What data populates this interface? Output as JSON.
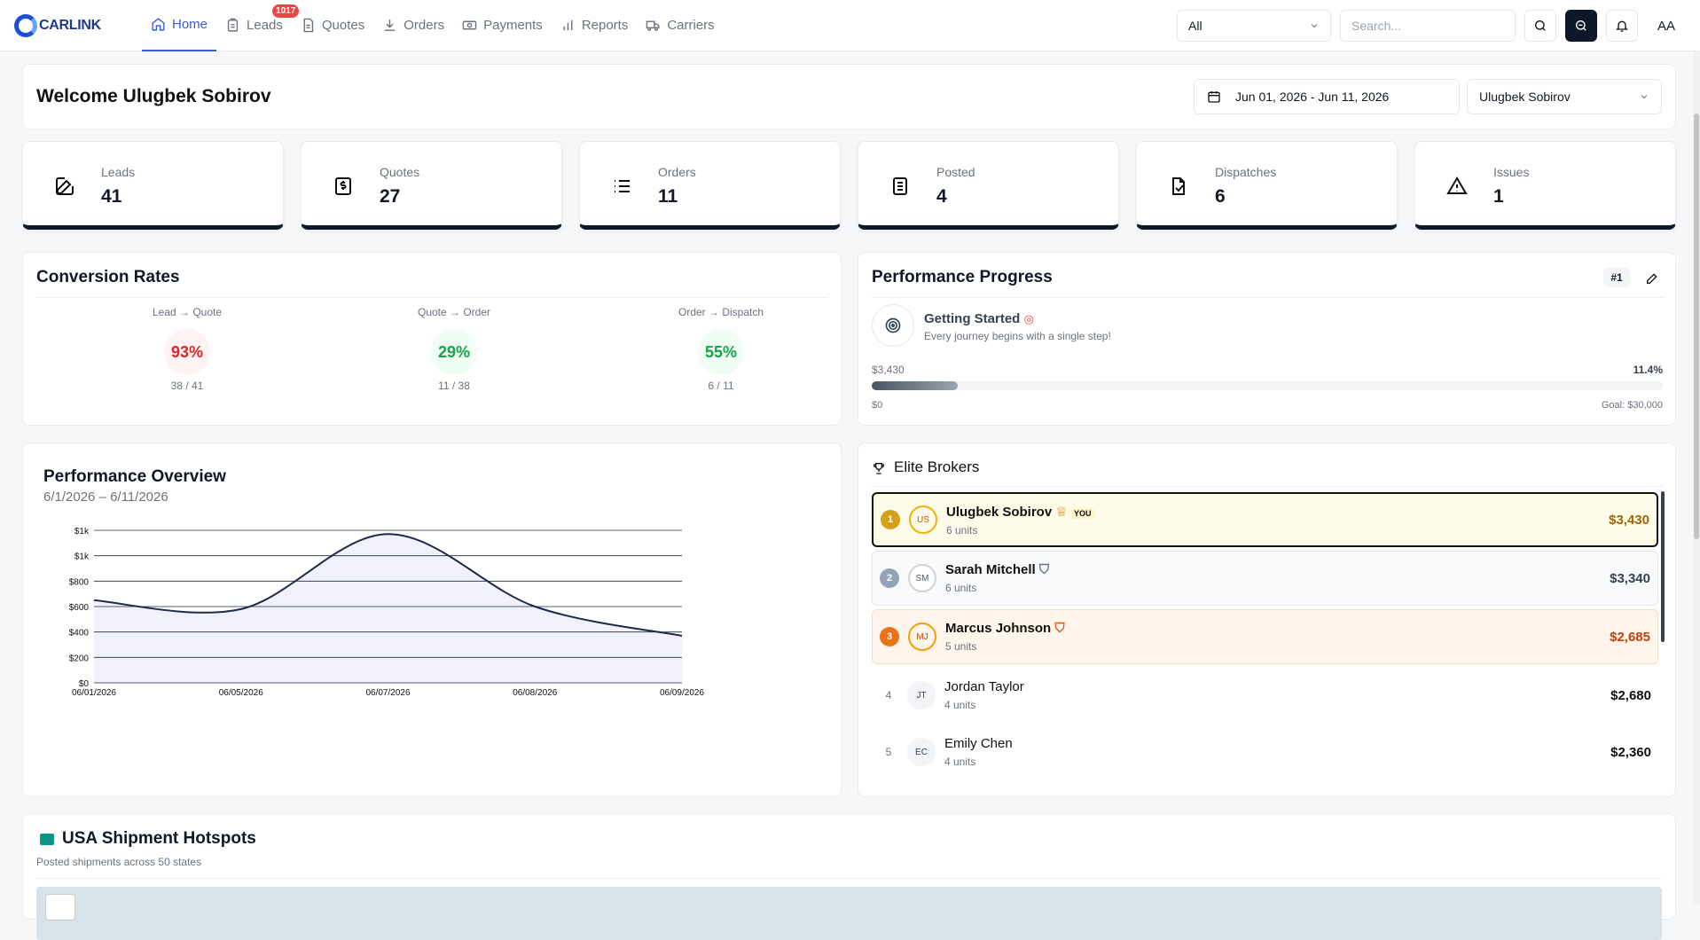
{
  "brand": {
    "name": "CARLINK"
  },
  "nav": {
    "items": [
      {
        "label": "Home",
        "icon": "home-icon",
        "active": true
      },
      {
        "label": "Leads",
        "icon": "clipboard-icon",
        "badge": "1017"
      },
      {
        "label": "Quotes",
        "icon": "document-icon"
      },
      {
        "label": "Orders",
        "icon": "download-icon"
      },
      {
        "label": "Payments",
        "icon": "banknote-icon"
      },
      {
        "label": "Reports",
        "icon": "bar-chart-icon"
      },
      {
        "label": "Carriers",
        "icon": "truck-icon"
      }
    ],
    "filter_value": "All",
    "search_placeholder": "Search...",
    "user_initials": "AA"
  },
  "welcome": {
    "title": "Welcome Ulugbek Sobirov",
    "date_range": "Jun 01, 2026 - Jun 11, 2026",
    "user_select": "Ulugbek Sobirov"
  },
  "stats": [
    {
      "label": "Leads",
      "value": "41",
      "icon": "edit-icon"
    },
    {
      "label": "Quotes",
      "value": "27",
      "icon": "receipt-icon"
    },
    {
      "label": "Orders",
      "value": "11",
      "icon": "list-icon"
    },
    {
      "label": "Posted",
      "value": "4",
      "icon": "clipboard-list-icon"
    },
    {
      "label": "Dispatches",
      "value": "6",
      "icon": "file-export-icon"
    },
    {
      "label": "Issues",
      "value": "1",
      "icon": "warning-icon"
    }
  ],
  "conversion": {
    "title": "Conversion Rates",
    "items": [
      {
        "label": "Lead → Quote",
        "pct": "93%",
        "ratio": "38 / 41",
        "color": "#dc2626",
        "bg": "#fef2f2"
      },
      {
        "label": "Quote → Order",
        "pct": "29%",
        "ratio": "11 / 38",
        "color": "#16a34a",
        "bg": "#f0fdf4"
      },
      {
        "label": "Order → Dispatch",
        "pct": "55%",
        "ratio": "6 / 11",
        "color": "#16a34a",
        "bg": "#f0fdf4"
      }
    ]
  },
  "progress": {
    "title": "Performance Progress",
    "rank": "#1",
    "milestone_title": "Getting Started",
    "milestone_sub": "Every journey begins with a single step!",
    "current": "$3,430",
    "percent": "11.4%",
    "fraction": 0.114,
    "min": "$0",
    "goal": "Goal: $30,000"
  },
  "overview": {
    "title": "Performance Overview",
    "subtitle": "6/1/2026 – 6/11/2026"
  },
  "chart_data": {
    "type": "area",
    "x": [
      "06/01/2026",
      "06/05/2026",
      "06/07/2026",
      "06/08/2026",
      "06/09/2026"
    ],
    "values": [
      650,
      580,
      1170,
      600,
      370
    ],
    "y_ticks": [
      "$0",
      "$200",
      "$400",
      "$600",
      "$800",
      "$1k",
      "$1k"
    ],
    "ylim": [
      0,
      1200
    ],
    "grid": true,
    "line_color": "#1e2a4a",
    "fill_color": "#eef0fb"
  },
  "elite": {
    "title": "Elite Brokers",
    "brokers": [
      {
        "rank": "1",
        "initials": "US",
        "name": "Ulugbek Sobirov",
        "units": "6 units",
        "amount": "$3,430",
        "you": "YOU"
      },
      {
        "rank": "2",
        "initials": "SM",
        "name": "Sarah Mitchell",
        "units": "6 units",
        "amount": "$3,340"
      },
      {
        "rank": "3",
        "initials": "MJ",
        "name": "Marcus Johnson",
        "units": "5 units",
        "amount": "$2,685"
      },
      {
        "rank": "4",
        "initials": "JT",
        "name": "Jordan Taylor",
        "units": "4 units",
        "amount": "$2,680"
      },
      {
        "rank": "5",
        "initials": "EC",
        "name": "Emily Chen",
        "units": "4 units",
        "amount": "$2,360"
      }
    ]
  },
  "hotspots": {
    "title": "USA Shipment Hotspots",
    "subtitle": "Posted shipments across 50 states"
  }
}
